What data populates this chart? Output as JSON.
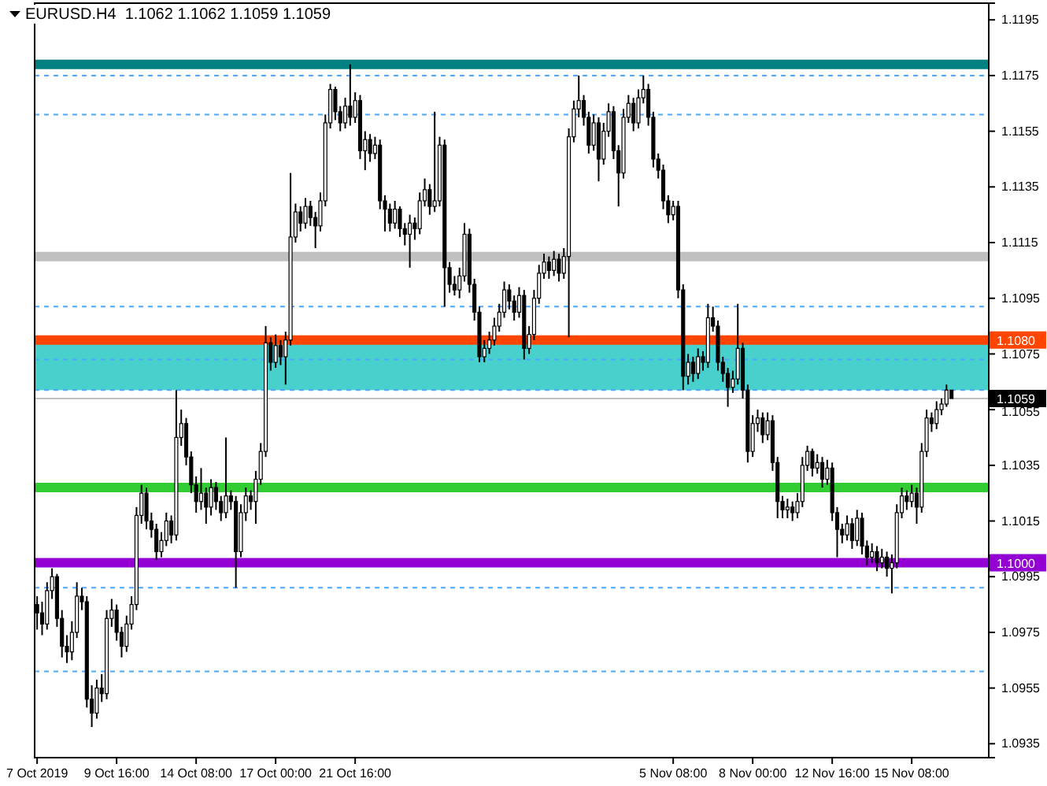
{
  "chart_data": {
    "type": "candlestick",
    "title": "EURUSD.H4  1.1062 1.1062 1.1059 1.1059",
    "categories": [
      "7 Oct 2019",
      null,
      null,
      null,
      null,
      null,
      null,
      null,
      null,
      null,
      null,
      null,
      null,
      null,
      null,
      null,
      "9 Oct 16:00",
      null,
      null,
      null,
      null,
      null,
      null,
      null,
      null,
      null,
      null,
      null,
      null,
      null,
      null,
      null,
      "14 Oct 08:00",
      null,
      null,
      null,
      null,
      null,
      null,
      null,
      null,
      null,
      null,
      null,
      null,
      null,
      null,
      null,
      "17 Oct 00:00",
      null,
      null,
      null,
      null,
      null,
      null,
      null,
      null,
      null,
      null,
      null,
      null,
      null,
      null,
      null,
      "21 Oct 16:00",
      null,
      null,
      null,
      null,
      null,
      null,
      null,
      null,
      null,
      null,
      null,
      null,
      null,
      null,
      null,
      null,
      null,
      null,
      null,
      null,
      null,
      null,
      null,
      null,
      null,
      null,
      null,
      null,
      null,
      null,
      null,
      null,
      null,
      null,
      null,
      null,
      null,
      null,
      null,
      null,
      null,
      null,
      null,
      null,
      null,
      null,
      null,
      null,
      null,
      null,
      null,
      null,
      null,
      null,
      null,
      null,
      null,
      null,
      null,
      null,
      null,
      null,
      null,
      "5 Nov 08:00",
      null,
      null,
      null,
      null,
      null,
      null,
      null,
      null,
      null,
      null,
      null,
      null,
      null,
      null,
      null,
      "8 Nov 00:00",
      null,
      null,
      null,
      null,
      null,
      null,
      null,
      null,
      null,
      null,
      null,
      null,
      null,
      null,
      null,
      "12 Nov 16:00",
      null,
      null,
      null,
      null,
      null,
      null,
      null,
      null,
      null,
      null,
      null,
      null,
      null,
      null,
      null,
      "15 Nov 08:00",
      null,
      null,
      null,
      null,
      null,
      null,
      null,
      null
    ],
    "ohlc": [
      [
        1.0985,
        1.0988,
        1.0976,
        1.0982
      ],
      [
        1.0982,
        1.0986,
        1.0974,
        1.0978
      ],
      [
        1.0978,
        1.0993,
        1.0976,
        1.099
      ],
      [
        1.099,
        1.0998,
        1.0987,
        1.0995
      ],
      [
        1.0995,
        1.0996,
        1.0977,
        1.098
      ],
      [
        1.098,
        1.0983,
        1.0966,
        1.097
      ],
      [
        1.097,
        1.0974,
        1.0964,
        1.0968
      ],
      [
        1.0968,
        1.0979,
        1.0965,
        1.0975
      ],
      [
        1.0975,
        1.0993,
        1.0973,
        1.0988
      ],
      [
        1.0988,
        1.0991,
        1.0983,
        1.0986
      ],
      [
        1.0986,
        1.0988,
        1.0948,
        1.0951
      ],
      [
        1.0951,
        1.0956,
        1.0941,
        1.0946
      ],
      [
        1.0946,
        1.0958,
        1.0944,
        1.0955
      ],
      [
        1.0955,
        1.096,
        1.095,
        1.0953
      ],
      [
        1.0953,
        1.0983,
        1.0951,
        1.098
      ],
      [
        1.098,
        1.0987,
        1.0977,
        1.0983
      ],
      [
        1.0983,
        1.0985,
        1.0972,
        1.0975
      ],
      [
        1.0975,
        1.0977,
        1.0966,
        1.097
      ],
      [
        1.097,
        1.0981,
        1.0968,
        1.0978
      ],
      [
        1.0978,
        1.0988,
        1.0976,
        1.0985
      ],
      [
        1.0985,
        1.102,
        1.0983,
        1.1017
      ],
      [
        1.1017,
        1.1028,
        1.1014,
        1.1025
      ],
      [
        1.1025,
        1.1027,
        1.1012,
        1.1015
      ],
      [
        1.1015,
        1.1018,
        1.1009,
        1.1012
      ],
      [
        1.1012,
        1.1014,
        1.1001,
        1.1004
      ],
      [
        1.1004,
        1.1011,
        1.1002,
        1.1008
      ],
      [
        1.1008,
        1.1018,
        1.1006,
        1.1015
      ],
      [
        1.1015,
        1.1017,
        1.1007,
        1.101
      ],
      [
        1.101,
        1.1062,
        1.1008,
        1.1045
      ],
      [
        1.1045,
        1.1055,
        1.1042,
        1.105
      ],
      [
        1.105,
        1.1052,
        1.1035,
        1.1038
      ],
      [
        1.1038,
        1.104,
        1.1025,
        1.1028
      ],
      [
        1.1028,
        1.1031,
        1.1018,
        1.1022
      ],
      [
        1.1022,
        1.1034,
        1.1019,
        1.1025
      ],
      [
        1.1025,
        1.1027,
        1.1014,
        1.102
      ],
      [
        1.102,
        1.103,
        1.1017,
        1.1027
      ],
      [
        1.1027,
        1.1029,
        1.1019,
        1.1022
      ],
      [
        1.1022,
        1.1024,
        1.1015,
        1.1018
      ],
      [
        1.1018,
        1.1045,
        1.1016,
        1.1024
      ],
      [
        1.1024,
        1.1026,
        1.1019,
        1.1022
      ],
      [
        1.1022,
        1.1024,
        1.0991,
        1.1004
      ],
      [
        1.1004,
        1.1021,
        1.1002,
        1.1018
      ],
      [
        1.1018,
        1.1027,
        1.1015,
        1.1024
      ],
      [
        1.1024,
        1.1026,
        1.1019,
        1.1022
      ],
      [
        1.1022,
        1.1033,
        1.1014,
        1.103
      ],
      [
        1.103,
        1.1043,
        1.1028,
        1.104
      ],
      [
        1.104,
        1.1085,
        1.1038,
        1.1079
      ],
      [
        1.1079,
        1.1081,
        1.1069,
        1.1072
      ],
      [
        1.1072,
        1.1082,
        1.107,
        1.1078
      ],
      [
        1.1078,
        1.108,
        1.1071,
        1.1074
      ],
      [
        1.1074,
        1.1083,
        1.1064,
        1.108
      ],
      [
        1.108,
        1.114,
        1.1078,
        1.1117
      ],
      [
        1.1117,
        1.1129,
        1.1115,
        1.1126
      ],
      [
        1.1126,
        1.1128,
        1.1119,
        1.1122
      ],
      [
        1.1122,
        1.1131,
        1.112,
        1.1128
      ],
      [
        1.1128,
        1.113,
        1.1121,
        1.1124
      ],
      [
        1.1124,
        1.1126,
        1.1113,
        1.1121
      ],
      [
        1.1121,
        1.1133,
        1.1119,
        1.113
      ],
      [
        1.113,
        1.1161,
        1.1128,
        1.1158
      ],
      [
        1.1158,
        1.1172,
        1.1156,
        1.117
      ],
      [
        1.117,
        1.1171,
        1.1159,
        1.1162
      ],
      [
        1.1162,
        1.1164,
        1.1155,
        1.1158
      ],
      [
        1.1158,
        1.1167,
        1.1156,
        1.1164
      ],
      [
        1.1164,
        1.1179,
        1.1157,
        1.116
      ],
      [
        1.116,
        1.1169,
        1.1158,
        1.1166
      ],
      [
        1.1166,
        1.1168,
        1.1145,
        1.1148
      ],
      [
        1.1148,
        1.1155,
        1.1141,
        1.1152
      ],
      [
        1.1152,
        1.1154,
        1.1144,
        1.1147
      ],
      [
        1.1147,
        1.1153,
        1.1145,
        1.115
      ],
      [
        1.115,
        1.1152,
        1.1127,
        1.113
      ],
      [
        1.113,
        1.1132,
        1.1119,
        1.1127
      ],
      [
        1.1127,
        1.1129,
        1.1119,
        1.1122
      ],
      [
        1.1122,
        1.113,
        1.112,
        1.1127
      ],
      [
        1.1127,
        1.1128,
        1.1117,
        1.112
      ],
      [
        1.112,
        1.1122,
        1.1114,
        1.1118
      ],
      [
        1.1118,
        1.1125,
        1.1106,
        1.1122
      ],
      [
        1.1122,
        1.1124,
        1.1116,
        1.112
      ],
      [
        1.112,
        1.1133,
        1.1118,
        1.113
      ],
      [
        1.113,
        1.1138,
        1.1128,
        1.1134
      ],
      [
        1.1134,
        1.1136,
        1.1125,
        1.1128
      ],
      [
        1.1128,
        1.1162,
        1.1126,
        1.113
      ],
      [
        1.113,
        1.1153,
        1.1128,
        1.115
      ],
      [
        1.115,
        1.1152,
        1.1092,
        1.1106
      ],
      [
        1.1106,
        1.1108,
        1.1097,
        1.11
      ],
      [
        1.11,
        1.1103,
        1.1096,
        1.1098
      ],
      [
        1.1098,
        1.1106,
        1.1095,
        1.1103
      ],
      [
        1.1103,
        1.1122,
        1.1101,
        1.1118
      ],
      [
        1.1118,
        1.112,
        1.1097,
        1.11
      ],
      [
        1.11,
        1.1102,
        1.1087,
        1.109
      ],
      [
        1.109,
        1.1092,
        1.1072,
        1.1074
      ],
      [
        1.1074,
        1.108,
        1.1072,
        1.1077
      ],
      [
        1.1077,
        1.1083,
        1.1075,
        1.108
      ],
      [
        1.108,
        1.1088,
        1.1078,
        1.1085
      ],
      [
        1.1085,
        1.1093,
        1.1083,
        1.109
      ],
      [
        1.109,
        1.1101,
        1.1088,
        1.1098
      ],
      [
        1.1098,
        1.11,
        1.1091,
        1.1094
      ],
      [
        1.1094,
        1.1096,
        1.1087,
        1.109
      ],
      [
        1.109,
        1.1099,
        1.1088,
        1.1096
      ],
      [
        1.1096,
        1.1098,
        1.1073,
        1.1077
      ],
      [
        1.1077,
        1.1085,
        1.1075,
        1.1082
      ],
      [
        1.1082,
        1.1098,
        1.108,
        1.1095
      ],
      [
        1.1095,
        1.1107,
        1.1093,
        1.1104
      ],
      [
        1.1104,
        1.1111,
        1.1102,
        1.1108
      ],
      [
        1.1108,
        1.111,
        1.1102,
        1.1105
      ],
      [
        1.1105,
        1.1112,
        1.1103,
        1.1109
      ],
      [
        1.1109,
        1.1111,
        1.1101,
        1.1104
      ],
      [
        1.1104,
        1.1113,
        1.1102,
        1.111
      ],
      [
        1.111,
        1.1156,
        1.1081,
        1.1153
      ],
      [
        1.1153,
        1.1166,
        1.1151,
        1.1163
      ],
      [
        1.1163,
        1.1175,
        1.116,
        1.1166
      ],
      [
        1.1166,
        1.1168,
        1.1157,
        1.116
      ],
      [
        1.116,
        1.1162,
        1.1147,
        1.115
      ],
      [
        1.115,
        1.1161,
        1.1148,
        1.1158
      ],
      [
        1.1158,
        1.116,
        1.1137,
        1.1145
      ],
      [
        1.1145,
        1.1158,
        1.1143,
        1.1155
      ],
      [
        1.1155,
        1.1165,
        1.1153,
        1.1162
      ],
      [
        1.1162,
        1.1164,
        1.1145,
        1.1148
      ],
      [
        1.1148,
        1.115,
        1.1128,
        1.114
      ],
      [
        1.114,
        1.1163,
        1.1138,
        1.116
      ],
      [
        1.116,
        1.1168,
        1.1158,
        1.1165
      ],
      [
        1.1165,
        1.1167,
        1.1155,
        1.1158
      ],
      [
        1.1158,
        1.117,
        1.1156,
        1.1167
      ],
      [
        1.1167,
        1.1175,
        1.1165,
        1.117
      ],
      [
        1.117,
        1.1172,
        1.1157,
        1.116
      ],
      [
        1.116,
        1.1162,
        1.1142,
        1.1145
      ],
      [
        1.1145,
        1.1147,
        1.1138,
        1.1141
      ],
      [
        1.1141,
        1.1143,
        1.1127,
        1.113
      ],
      [
        1.113,
        1.1132,
        1.1122,
        1.1125
      ],
      [
        1.1125,
        1.113,
        1.1123,
        1.1128
      ],
      [
        1.1128,
        1.113,
        1.1095,
        1.1098
      ],
      [
        1.1098,
        1.11,
        1.1062,
        1.1067
      ],
      [
        1.1067,
        1.1075,
        1.1064,
        1.1072
      ],
      [
        1.1072,
        1.1074,
        1.1065,
        1.1068
      ],
      [
        1.1068,
        1.1077,
        1.1066,
        1.1074
      ],
      [
        1.1074,
        1.1076,
        1.1069,
        1.1072
      ],
      [
        1.1072,
        1.1093,
        1.107,
        1.1088
      ],
      [
        1.1088,
        1.1092,
        1.1083,
        1.1085
      ],
      [
        1.1085,
        1.1087,
        1.1069,
        1.1072
      ],
      [
        1.1072,
        1.1074,
        1.1065,
        1.1068
      ],
      [
        1.1068,
        1.107,
        1.1056,
        1.1063
      ],
      [
        1.1063,
        1.1069,
        1.1061,
        1.1066
      ],
      [
        1.1066,
        1.1093,
        1.1064,
        1.1077
      ],
      [
        1.1077,
        1.1079,
        1.1059,
        1.1062
      ],
      [
        1.1062,
        1.1064,
        1.1036,
        1.104
      ],
      [
        1.104,
        1.1053,
        1.1038,
        1.105
      ],
      [
        1.105,
        1.1055,
        1.1047,
        1.1052
      ],
      [
        1.1052,
        1.1054,
        1.1043,
        1.1046
      ],
      [
        1.1046,
        1.1054,
        1.1044,
        1.1051
      ],
      [
        1.1051,
        1.1053,
        1.1033,
        1.1036
      ],
      [
        1.1036,
        1.1038,
        1.1016,
        1.1022
      ],
      [
        1.1022,
        1.1024,
        1.1016,
        1.1019
      ],
      [
        1.1019,
        1.1023,
        1.1016,
        1.102
      ],
      [
        1.102,
        1.1022,
        1.1015,
        1.1018
      ],
      [
        1.1018,
        1.1025,
        1.1016,
        1.1022
      ],
      [
        1.1022,
        1.1038,
        1.102,
        1.1035
      ],
      [
        1.1035,
        1.1042,
        1.1033,
        1.104
      ],
      [
        1.104,
        1.1041,
        1.1031,
        1.1034
      ],
      [
        1.1034,
        1.1039,
        1.1032,
        1.1036
      ],
      [
        1.1036,
        1.1038,
        1.1027,
        1.103
      ],
      [
        1.103,
        1.1037,
        1.1028,
        1.1034
      ],
      [
        1.1034,
        1.1036,
        1.1015,
        1.1018
      ],
      [
        1.1018,
        1.102,
        1.1002,
        1.1012
      ],
      [
        1.1012,
        1.1014,
        1.1007,
        1.101
      ],
      [
        1.101,
        1.1017,
        1.1008,
        1.1014
      ],
      [
        1.1014,
        1.1016,
        1.1005,
        1.1008
      ],
      [
        1.1008,
        1.1019,
        1.1006,
        1.1016
      ],
      [
        1.1016,
        1.1018,
        1.1003,
        1.1006
      ],
      [
        1.1006,
        1.1008,
        1.0999,
        1.1002
      ],
      [
        1.1002,
        1.1007,
        1.1,
        1.1004
      ],
      [
        1.1004,
        1.1006,
        1.0997,
        1.1
      ],
      [
        1.1,
        1.1005,
        1.0998,
        1.1002
      ],
      [
        1.1002,
        1.1004,
        1.0995,
        1.0998
      ],
      [
        1.0998,
        1.1003,
        1.0989,
        1.1
      ],
      [
        1.1,
        1.1021,
        1.0998,
        1.1018
      ],
      [
        1.1018,
        1.1027,
        1.1016,
        1.1024
      ],
      [
        1.1024,
        1.1026,
        1.1019,
        1.1022
      ],
      [
        1.1022,
        1.1028,
        1.102,
        1.1025
      ],
      [
        1.1025,
        1.1027,
        1.1014,
        1.102
      ],
      [
        1.102,
        1.1043,
        1.1018,
        1.104
      ],
      [
        1.104,
        1.1055,
        1.1038,
        1.1052
      ],
      [
        1.1052,
        1.1054,
        1.1047,
        1.105
      ],
      [
        1.105,
        1.1058,
        1.1048,
        1.1055
      ],
      [
        1.1055,
        1.1059,
        1.1053,
        1.1057
      ],
      [
        1.1057,
        1.1064,
        1.1056,
        1.1062
      ],
      [
        1.1062,
        1.1062,
        1.1059,
        1.1059
      ]
    ],
    "ylim": [
      1.093,
      1.1201
    ],
    "yticks": [
      1.1195,
      1.1175,
      1.1155,
      1.1135,
      1.1115,
      1.1095,
      1.1075,
      1.1055,
      1.1035,
      1.1015,
      1.0995,
      1.0975,
      1.0955,
      1.0935
    ],
    "bands": [
      {
        "axis": "y",
        "from": 1.1062,
        "to": 1.108,
        "color": "#48d1cc"
      }
    ],
    "ref_lines": [
      {
        "axis": "y",
        "value": 1.1179,
        "color": "#008080",
        "line_style": "solid"
      },
      {
        "axis": "y",
        "value": 1.1175,
        "color": "#4da6ff",
        "line_style": "dashed"
      },
      {
        "axis": "y",
        "value": 1.1161,
        "color": "#4da6ff",
        "line_style": "dashed"
      },
      {
        "axis": "y",
        "value": 1.111,
        "color": "#c0c0c0",
        "line_style": "solid"
      },
      {
        "axis": "y",
        "value": 1.1092,
        "color": "#4da6ff",
        "line_style": "dashed"
      },
      {
        "axis": "y",
        "value": 1.108,
        "color": "#ff4500",
        "line_style": "solid",
        "label": "1.1080"
      },
      {
        "axis": "y",
        "value": 1.1073,
        "color": "#4da6ff",
        "line_style": "dashed"
      },
      {
        "axis": "y",
        "value": 1.1062,
        "color": "#4da6ff",
        "line_style": "dashed"
      },
      {
        "axis": "y",
        "value": 1.1059,
        "color": "#c0c0c0",
        "label": "1.1059"
      },
      {
        "axis": "y",
        "value": 1.1027,
        "color": "#32cd32",
        "line_style": "solid"
      },
      {
        "axis": "y",
        "value": 1.1,
        "color": "#9400d3",
        "line_style": "solid",
        "label": "1.1000"
      },
      {
        "axis": "y",
        "value": 1.0991,
        "color": "#4da6ff",
        "line_style": "dashed"
      },
      {
        "axis": "y",
        "value": 1.0961,
        "color": "#4da6ff",
        "line_style": "dashed"
      }
    ]
  }
}
